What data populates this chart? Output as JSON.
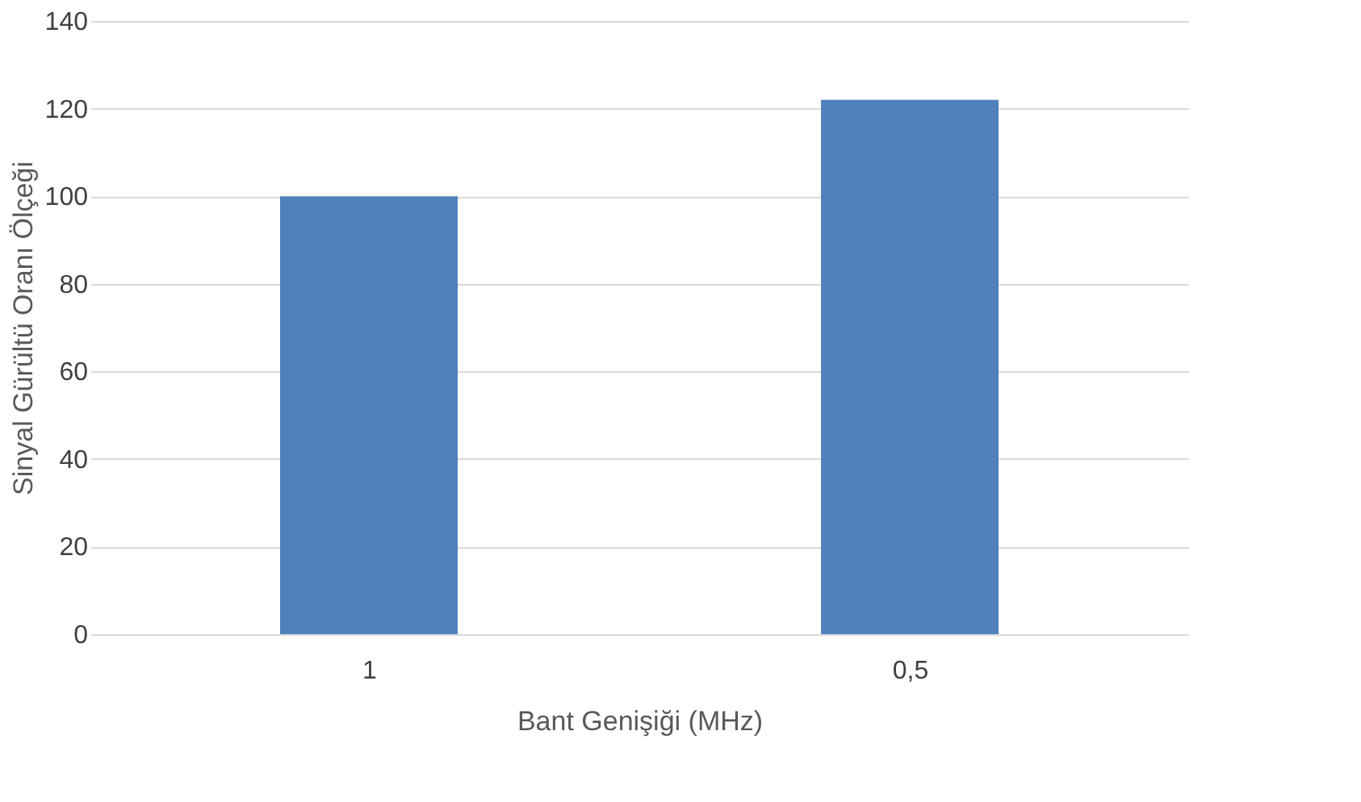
{
  "chart_data": {
    "type": "bar",
    "xlabel": "Bant Genişiği (MHz)",
    "ylabel": "Sinyal Gürültü Oranı Ölçeği",
    "categories": [
      "1",
      "0,5"
    ],
    "series": [
      {
        "color": "#4f81bd",
        "values": [
          100,
          122
        ]
      }
    ],
    "ylim": [
      0,
      140
    ],
    "yticks": [
      0,
      20,
      40,
      60,
      80,
      100,
      120,
      140
    ],
    "grid": "y",
    "legend": false
  }
}
